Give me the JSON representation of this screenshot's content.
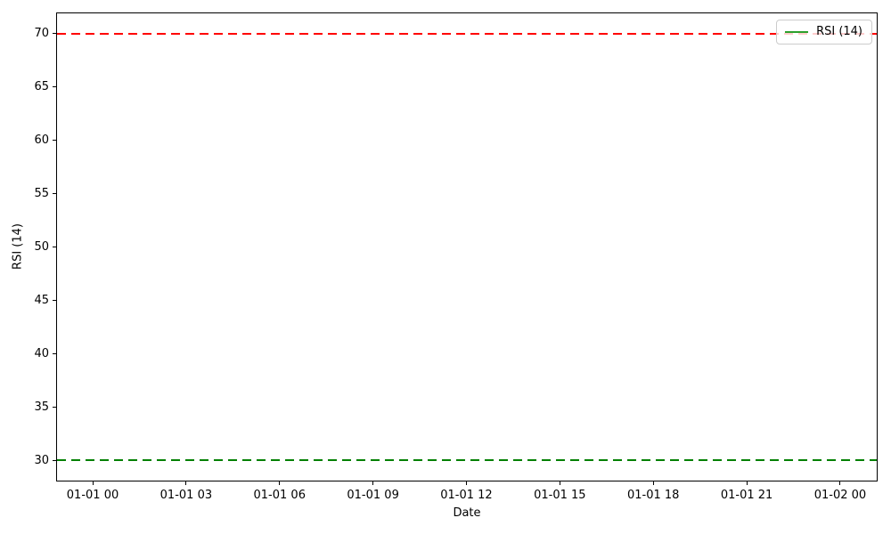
{
  "figure": {
    "background": "#ffffff",
    "spine_color": "#000000"
  },
  "chart_data": {
    "type": "line",
    "title": "",
    "xlabel": "Date",
    "ylabel": "RSI (14)",
    "x_tick_labels": [
      "01-01 00",
      "01-01 03",
      "01-01 06",
      "01-01 09",
      "01-01 12",
      "01-01 15",
      "01-01 18",
      "01-01 21",
      "01-02 00"
    ],
    "y_ticks": [
      30,
      35,
      40,
      45,
      50,
      55,
      60,
      65,
      70
    ],
    "ylim": [
      28,
      72
    ],
    "grid": false,
    "series": [
      {
        "name": "RSI (14)",
        "color": "#2ca02c",
        "style": "solid",
        "values": []
      }
    ],
    "reference_lines": [
      {
        "name": "overbought-level",
        "value": 70,
        "color": "#ff0000",
        "style": "dashed"
      },
      {
        "name": "oversold-level",
        "value": 30,
        "color": "#008000",
        "style": "dashed"
      }
    ],
    "legend": {
      "position": "upper-right",
      "entries": [
        {
          "label": "RSI (14)",
          "color": "#2ca02c",
          "style": "solid"
        }
      ]
    }
  }
}
